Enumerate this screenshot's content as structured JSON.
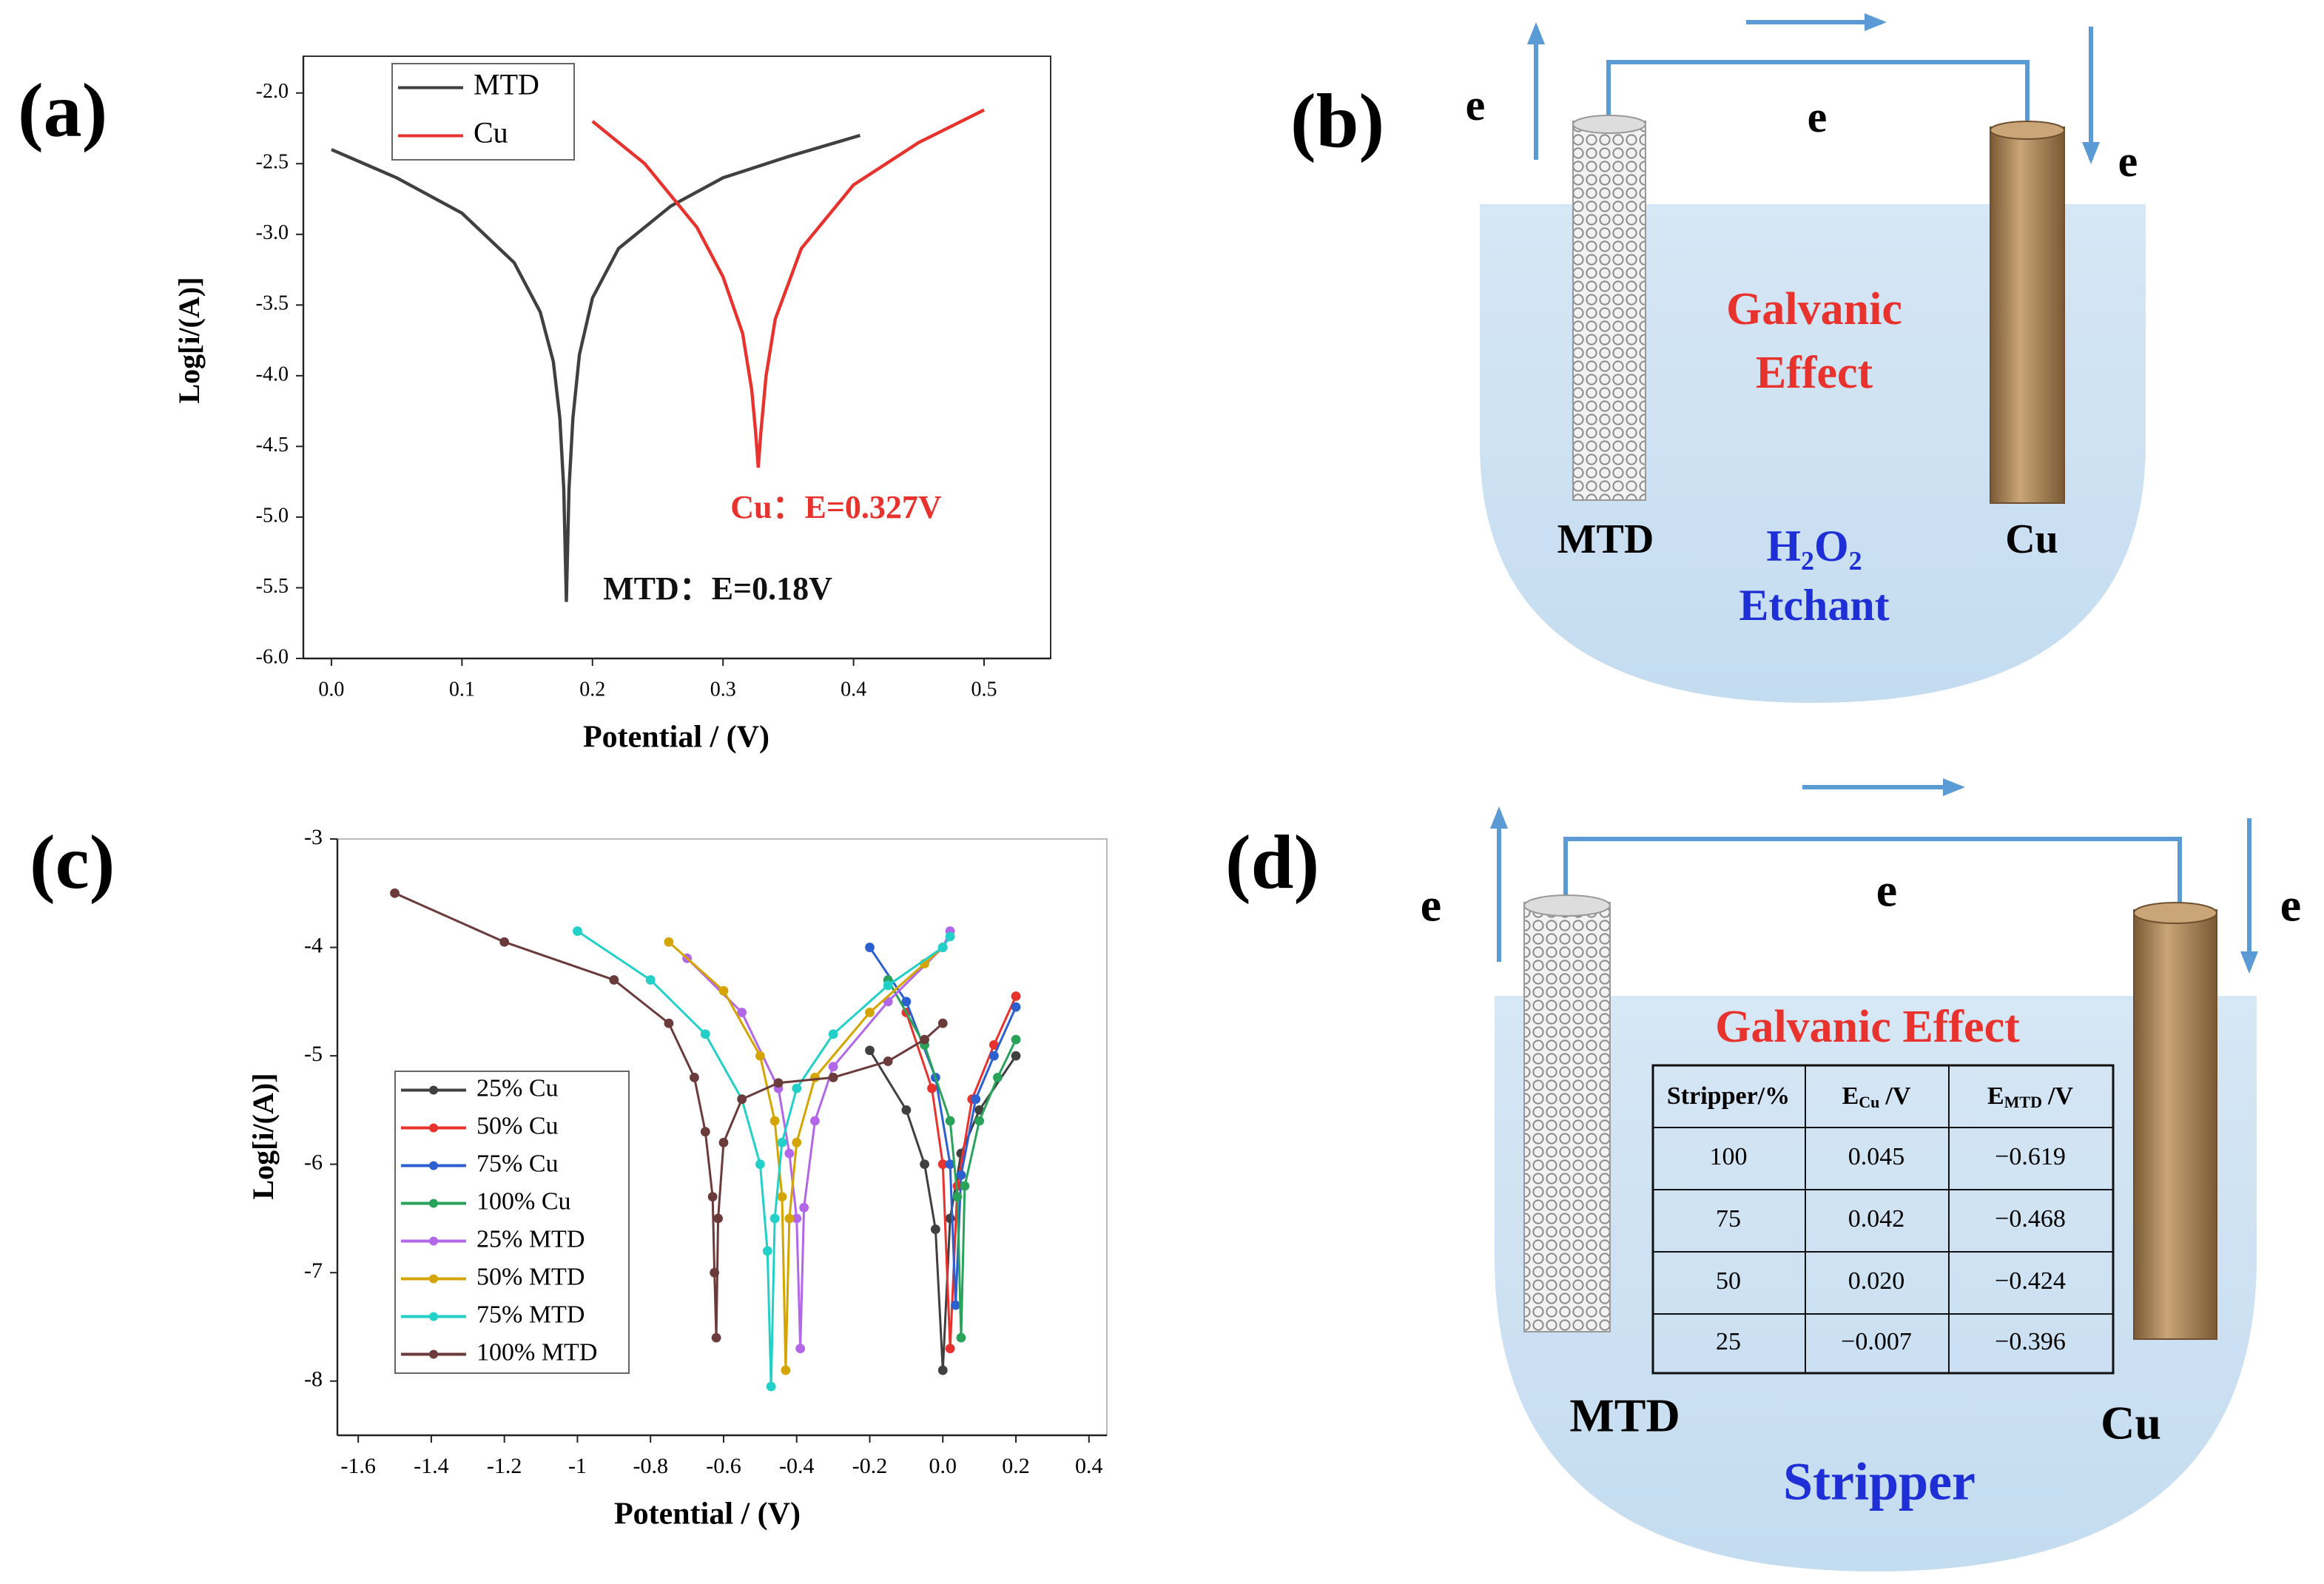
{
  "chart_data": [
    {
      "type": "line",
      "panel": "(a)",
      "xlabel": "Potential / (V)",
      "ylabel": "Log[i/(A)]",
      "xlim": [
        -0.0215,
        0.551
      ],
      "ylim": [
        -6.0,
        -1.74
      ],
      "xticks": [
        {
          "value": 0,
          "label": "0.0"
        },
        0.1,
        0.2,
        0.3,
        0.4,
        0.5
      ],
      "yticks": [
        {
          "value": -2,
          "label": "-2.0"
        },
        -2.5,
        {
          "value": -3,
          "label": "-3.0"
        },
        -3.5,
        {
          "value": -4,
          "label": "-4.0"
        },
        -4.5,
        {
          "value": -5,
          "label": "-5.0"
        },
        -5.5,
        {
          "value": -6,
          "label": "-6.0"
        }
      ],
      "legend": "upper left",
      "markers": false,
      "series": [
        {
          "name": "MTD",
          "color": "#404040",
          "x": [
            0,
            0.05,
            0.1,
            0.14,
            0.16,
            0.17,
            0.175,
            0.178,
            0.18,
            0.182,
            0.185,
            0.19,
            0.2,
            0.22,
            0.26,
            0.3,
            0.35,
            0.405
          ],
          "values": [
            -2.4,
            -2.6,
            -2.85,
            -3.2,
            -3.55,
            -3.9,
            -4.3,
            -4.8,
            -5.6,
            -4.8,
            -4.3,
            -3.85,
            -3.45,
            -3.1,
            -2.8,
            -2.6,
            -2.45,
            -2.3
          ]
        },
        {
          "name": "Cu",
          "color": "#e8322e",
          "x": [
            0.2,
            0.24,
            0.28,
            0.3,
            0.315,
            0.322,
            0.325,
            0.327,
            0.329,
            0.333,
            0.34,
            0.36,
            0.4,
            0.45,
            0.5
          ],
          "values": [
            -2.2,
            -2.5,
            -2.95,
            -3.3,
            -3.7,
            -4.1,
            -4.4,
            -4.65,
            -4.4,
            -4.0,
            -3.6,
            -3.1,
            -2.65,
            -2.35,
            -2.12
          ]
        }
      ],
      "annotations": [
        {
          "text": "Cu：E=0.327V",
          "color": "#e8322e"
        },
        {
          "text": "MTD：E=0.18V",
          "color": "#111111"
        }
      ]
    },
    {
      "type": "line",
      "panel": "(c)",
      "xlabel": "Potential / (V)",
      "ylabel": "Log[i/(A)]",
      "xlim": [
        -1.657,
        0.449
      ],
      "ylim": [
        -8.5,
        -3
      ],
      "xticks": [
        -1.6,
        -1.4,
        -1.2,
        -1,
        -0.8,
        -0.6,
        -0.4,
        -0.2,
        {
          "value": 0,
          "label": "0.0"
        },
        0.2,
        0.4
      ],
      "yticks": [
        -3,
        -4,
        -5,
        -6,
        -7,
        -8
      ],
      "legend": "center left",
      "markers": true,
      "series": [
        {
          "name": "25% Cu",
          "color": "#404040",
          "x": [
            -0.2,
            -0.1,
            -0.05,
            -0.02,
            0.0,
            0.02,
            0.05,
            0.1,
            0.2
          ],
          "values": [
            -4.95,
            -5.5,
            -6.0,
            -6.6,
            -7.9,
            -6.5,
            -5.9,
            -5.5,
            -5.0
          ]
        },
        {
          "name": "50% Cu",
          "color": "#e8322e",
          "x": [
            -0.1,
            -0.03,
            0.0,
            0.02,
            0.04,
            0.08,
            0.14,
            0.2
          ],
          "values": [
            -4.6,
            -5.3,
            -6.0,
            -7.7,
            -6.2,
            -5.4,
            -4.9,
            -4.45
          ]
        },
        {
          "name": "75% Cu",
          "color": "#2c5fd0",
          "x": [
            -0.2,
            -0.1,
            -0.02,
            0.02,
            0.035,
            0.05,
            0.09,
            0.14,
            0.2
          ],
          "values": [
            -4.0,
            -4.5,
            -5.2,
            -6.0,
            -7.3,
            -6.1,
            -5.4,
            -5.0,
            -4.55
          ]
        },
        {
          "name": "100% Cu",
          "color": "#2aa35a",
          "x": [
            -0.15,
            -0.05,
            0.02,
            0.04,
            0.05,
            0.06,
            0.1,
            0.15,
            0.2
          ],
          "values": [
            -4.3,
            -4.9,
            -5.6,
            -6.3,
            -7.6,
            -6.2,
            -5.6,
            -5.2,
            -4.85
          ]
        },
        {
          "name": "25% MTD",
          "color": "#b266e8",
          "x": [
            -0.7,
            -0.55,
            -0.45,
            -0.42,
            -0.4,
            -0.39,
            -0.38,
            -0.35,
            -0.3,
            -0.15,
            0.0,
            0.02
          ],
          "values": [
            -4.1,
            -4.6,
            -5.3,
            -5.9,
            -6.5,
            -7.7,
            -6.4,
            -5.6,
            -5.1,
            -4.5,
            -4.0,
            -3.85
          ]
        },
        {
          "name": "50% MTD",
          "color": "#d4a500",
          "x": [
            -0.75,
            -0.6,
            -0.5,
            -0.46,
            -0.44,
            -0.43,
            -0.42,
            -0.4,
            -0.35,
            -0.2,
            -0.05,
            0.0
          ],
          "values": [
            -3.95,
            -4.4,
            -5.0,
            -5.6,
            -6.3,
            -7.9,
            -6.5,
            -5.8,
            -5.2,
            -4.6,
            -4.15,
            -4.0
          ]
        },
        {
          "name": "75% MTD",
          "color": "#22d0c8",
          "x": [
            -1.0,
            -0.8,
            -0.65,
            -0.55,
            -0.5,
            -0.48,
            -0.47,
            -0.46,
            -0.44,
            -0.4,
            -0.3,
            -0.15,
            0.0,
            0.02
          ],
          "values": [
            -3.85,
            -4.3,
            -4.8,
            -5.4,
            -6.0,
            -6.8,
            -8.05,
            -6.5,
            -5.8,
            -5.3,
            -4.8,
            -4.35,
            -4.0,
            -3.9
          ]
        },
        {
          "name": "100% MTD",
          "color": "#6b3a3a",
          "x": [
            -1.5,
            -1.2,
            -0.9,
            -0.75,
            -0.68,
            -0.65,
            -0.63,
            -0.625,
            -0.62,
            -0.615,
            -0.6,
            -0.55,
            -0.45,
            -0.3,
            -0.15,
            -0.05,
            0.0
          ],
          "values": [
            -3.5,
            -3.95,
            -4.3,
            -4.7,
            -5.2,
            -5.7,
            -6.3,
            -7.0,
            -7.6,
            -6.5,
            -5.8,
            -5.4,
            -5.25,
            -5.2,
            -5.05,
            -4.85,
            -4.7
          ]
        }
      ]
    }
  ],
  "diagrams": [
    {
      "panel": "(b)",
      "electrons": [
        "e",
        "e",
        "e"
      ],
      "effect": [
        "Galvanic",
        "Effect"
      ],
      "electrodes": [
        "MTD",
        "Cu"
      ],
      "solution": [
        "H₂O₂",
        "Etchant"
      ]
    },
    {
      "panel": "(d)",
      "electrons": [
        "e",
        "e",
        "e"
      ],
      "effect": "Galvanic Effect",
      "electrodes": [
        "MTD",
        "Cu"
      ],
      "solution": "Stripper",
      "table": {
        "header": [
          "Stripper/%",
          {
            "main": "E",
            "sub": "Cu",
            "unit": "/V"
          },
          {
            "main": "E",
            "sub": "MTD",
            "unit": "/V"
          }
        ],
        "rows": [
          [
            "100",
            "0.045",
            "−0.619"
          ],
          [
            "75",
            "0.042",
            "−0.468"
          ],
          [
            "50",
            "0.020",
            "−0.424"
          ],
          [
            "25",
            "−0.007",
            "−0.396"
          ]
        ]
      }
    }
  ]
}
